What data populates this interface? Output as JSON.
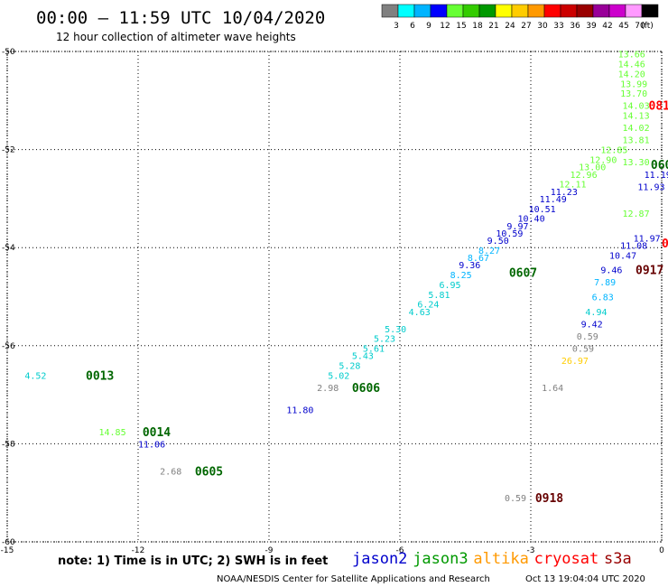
{
  "header": {
    "title": "00:00 — 11:59 UTC 10/04/2020",
    "subtitle": "12 hour collection of altimeter wave heights"
  },
  "colorbar": {
    "unit": "(ft)",
    "bins": [
      {
        "color": "#808080",
        "label": "3"
      },
      {
        "color": "#00ffff",
        "label": "6"
      },
      {
        "color": "#00b4ff",
        "label": "9"
      },
      {
        "color": "#0000ff",
        "label": "12"
      },
      {
        "color": "#66ff33",
        "label": "15"
      },
      {
        "color": "#33cc00",
        "label": "18"
      },
      {
        "color": "#009900",
        "label": "21"
      },
      {
        "color": "#ffff00",
        "label": "24"
      },
      {
        "color": "#ffcc00",
        "label": "27"
      },
      {
        "color": "#ff9900",
        "label": "30"
      },
      {
        "color": "#ff0000",
        "label": "33"
      },
      {
        "color": "#cc0000",
        "label": "36"
      },
      {
        "color": "#990000",
        "label": "39"
      },
      {
        "color": "#990099",
        "label": "42"
      },
      {
        "color": "#cc00cc",
        "label": "45"
      },
      {
        "color": "#ff99ff",
        "label": "70"
      },
      {
        "color": "#000000",
        "label": ""
      }
    ]
  },
  "axes": {
    "lon_ticks": [
      "-15",
      "-12",
      "-9",
      "-6",
      "-3",
      "0"
    ],
    "lat_ticks": [
      "-50",
      "-52",
      "-54",
      "-56",
      "-58",
      "-60"
    ]
  },
  "footer": {
    "note": "note: 1) Time is in UTC; 2) SWH is in feet",
    "credit": "NOAA/NESDIS Center for Satellite Applications and Research",
    "timestamp": "Oct 13 19:04:04 UTC 2020"
  },
  "satellites": [
    {
      "name": "jason2",
      "color": "#0000cc"
    },
    {
      "name": "jason3",
      "color": "#009900"
    },
    {
      "name": "altika",
      "color": "#ff9900"
    },
    {
      "name": "cryosat",
      "color": "#ff0000"
    },
    {
      "name": "s3a",
      "color": "#990000"
    }
  ],
  "pass_labels": [
    {
      "text": "0013",
      "color": "#006600",
      "lon": -13.2,
      "lat": -56.6
    },
    {
      "text": "0014",
      "color": "#006600",
      "lon": -11.9,
      "lat": -57.75
    },
    {
      "text": "0605",
      "color": "#006600",
      "lon": -10.7,
      "lat": -58.55
    },
    {
      "text": "0606",
      "color": "#006600",
      "lon": -7.1,
      "lat": -56.85
    },
    {
      "text": "0607",
      "color": "#006600",
      "lon": -3.5,
      "lat": -54.5
    },
    {
      "text": "0918",
      "color": "#660000",
      "lon": -2.9,
      "lat": -59.1
    },
    {
      "text": "0917",
      "color": "#660000",
      "lon": -0.6,
      "lat": -54.45
    },
    {
      "text": "081",
      "color": "#ff0000",
      "lon": -0.3,
      "lat": -51.1
    },
    {
      "text": "060",
      "color": "#006600",
      "lon": -0.25,
      "lat": -52.3
    },
    {
      "text": "0",
      "color": "#ff0000",
      "lon": 0,
      "lat": -53.9
    }
  ],
  "observations": [
    {
      "v": "4.52",
      "c": "#00cccc",
      "lon": -14.6,
      "lat": -56.6
    },
    {
      "v": "14.85",
      "c": "#66ff33",
      "lon": -12.9,
      "lat": -57.75
    },
    {
      "v": "11.06",
      "c": "#0000cc",
      "lon": -12.0,
      "lat": -58.0
    },
    {
      "v": "2.68",
      "c": "#808080",
      "lon": -11.5,
      "lat": -58.55
    },
    {
      "v": "11.80",
      "c": "#0000cc",
      "lon": -8.6,
      "lat": -57.3
    },
    {
      "v": "2.98",
      "c": "#808080",
      "lon": -7.9,
      "lat": -56.85
    },
    {
      "v": "5.02",
      "c": "#00cccc",
      "lon": -7.65,
      "lat": -56.6
    },
    {
      "v": "5.28",
      "c": "#00cccc",
      "lon": -7.4,
      "lat": -56.4
    },
    {
      "v": "5.43",
      "c": "#00cccc",
      "lon": -7.1,
      "lat": -56.2
    },
    {
      "v": "5.61",
      "c": "#00cccc",
      "lon": -6.85,
      "lat": -56.05
    },
    {
      "v": "5.23",
      "c": "#00cccc",
      "lon": -6.6,
      "lat": -55.85
    },
    {
      "v": "5.30",
      "c": "#00cccc",
      "lon": -6.35,
      "lat": -55.65
    },
    {
      "v": "4.63",
      "c": "#00cccc",
      "lon": -5.8,
      "lat": -55.3
    },
    {
      "v": "6.24",
      "c": "#00cccc",
      "lon": -5.6,
      "lat": -55.15
    },
    {
      "v": "5.81",
      "c": "#00cccc",
      "lon": -5.35,
      "lat": -54.95
    },
    {
      "v": "6.95",
      "c": "#00cccc",
      "lon": -5.1,
      "lat": -54.75
    },
    {
      "v": "8.25",
      "c": "#00b4ff",
      "lon": -4.85,
      "lat": -54.55
    },
    {
      "v": "9.36",
      "c": "#0000cc",
      "lon": -4.65,
      "lat": -54.35
    },
    {
      "v": "8.67",
      "c": "#00b4ff",
      "lon": -4.45,
      "lat": -54.2
    },
    {
      "v": "8.27",
      "c": "#00b4ff",
      "lon": -4.2,
      "lat": -54.05
    },
    {
      "v": "9.50",
      "c": "#0000cc",
      "lon": -4.0,
      "lat": -53.85
    },
    {
      "v": "10.59",
      "c": "#0000cc",
      "lon": -3.8,
      "lat": -53.7
    },
    {
      "v": "9.97",
      "c": "#0000cc",
      "lon": -3.55,
      "lat": -53.55
    },
    {
      "v": "10.40",
      "c": "#0000cc",
      "lon": -3.3,
      "lat": -53.4
    },
    {
      "v": "10.51",
      "c": "#0000cc",
      "lon": -3.05,
      "lat": -53.2
    },
    {
      "v": "11.49",
      "c": "#0000cc",
      "lon": -2.8,
      "lat": -53.0
    },
    {
      "v": "11.23",
      "c": "#0000cc",
      "lon": -2.55,
      "lat": -52.85
    },
    {
      "v": "12.11",
      "c": "#66ff33",
      "lon": -2.35,
      "lat": -52.7
    },
    {
      "v": "12.96",
      "c": "#66ff33",
      "lon": -2.1,
      "lat": -52.5
    },
    {
      "v": "13.00",
      "c": "#66ff33",
      "lon": -1.9,
      "lat": -52.35
    },
    {
      "v": "12.90",
      "c": "#66ff33",
      "lon": -1.65,
      "lat": -52.2
    },
    {
      "v": "12.85",
      "c": "#66ff33",
      "lon": -1.4,
      "lat": -52.0
    },
    {
      "v": "13.66",
      "c": "#66ff33",
      "lon": -1.0,
      "lat": -50.05
    },
    {
      "v": "14.46",
      "c": "#66ff33",
      "lon": -1.0,
      "lat": -50.25
    },
    {
      "v": "14.20",
      "c": "#66ff33",
      "lon": -1.0,
      "lat": -50.45
    },
    {
      "v": "13.99",
      "c": "#66ff33",
      "lon": -0.95,
      "lat": -50.65
    },
    {
      "v": "13.70",
      "c": "#66ff33",
      "lon": -0.95,
      "lat": -50.85
    },
    {
      "v": "14.03",
      "c": "#66ff33",
      "lon": -0.9,
      "lat": -51.1
    },
    {
      "v": "14.13",
      "c": "#66ff33",
      "lon": -0.9,
      "lat": -51.3
    },
    {
      "v": "14.02",
      "c": "#66ff33",
      "lon": -0.9,
      "lat": -51.55
    },
    {
      "v": "13.81",
      "c": "#66ff33",
      "lon": -0.9,
      "lat": -51.8
    },
    {
      "v": "13.30",
      "c": "#66ff33",
      "lon": -0.9,
      "lat": -52.25
    },
    {
      "v": "11.19",
      "c": "#0000cc",
      "lon": -0.4,
      "lat": -52.5
    },
    {
      "v": "11.93",
      "c": "#0000cc",
      "lon": -0.55,
      "lat": -52.75
    },
    {
      "v": "12.87",
      "c": "#66ff33",
      "lon": -0.9,
      "lat": -53.3
    },
    {
      "v": "11.97",
      "c": "#0000cc",
      "lon": -0.65,
      "lat": -53.8
    },
    {
      "v": "11.08",
      "c": "#0000cc",
      "lon": -0.95,
      "lat": -53.95
    },
    {
      "v": "10.47",
      "c": "#0000cc",
      "lon": -1.2,
      "lat": -54.15
    },
    {
      "v": "9.46",
      "c": "#0000cc",
      "lon": -1.4,
      "lat": -54.45
    },
    {
      "v": "7.89",
      "c": "#00b4ff",
      "lon": -1.55,
      "lat": -54.7
    },
    {
      "v": "6.83",
      "c": "#00b4ff",
      "lon": -1.6,
      "lat": -55.0
    },
    {
      "v": "4.94",
      "c": "#00cccc",
      "lon": -1.75,
      "lat": -55.3
    },
    {
      "v": "9.42",
      "c": "#0000cc",
      "lon": -1.85,
      "lat": -55.55
    },
    {
      "v": "0.59",
      "c": "#808080",
      "lon": -1.95,
      "lat": -55.8
    },
    {
      "v": "0.59",
      "c": "#808080",
      "lon": -2.05,
      "lat": -56.05
    },
    {
      "v": "26.97",
      "c": "#ffcc00",
      "lon": -2.3,
      "lat": -56.3
    },
    {
      "v": "1.64",
      "c": "#808080",
      "lon": -2.75,
      "lat": -56.85
    },
    {
      "v": "0.59",
      "c": "#808080",
      "lon": -3.6,
      "lat": -59.1
    }
  ]
}
